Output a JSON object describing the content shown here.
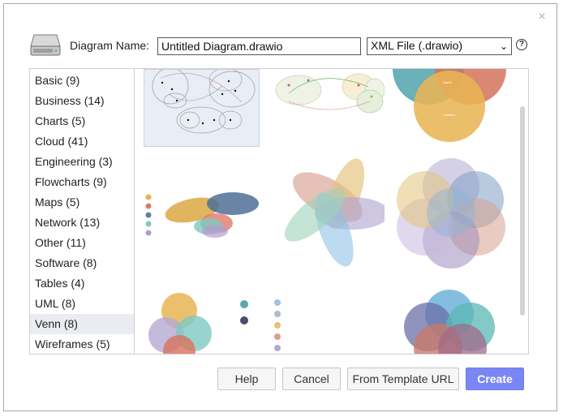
{
  "dialog": {
    "name_label": "Diagram Name:",
    "name_value": "Untitled Diagram.drawio",
    "format_selected": "XML File (.drawio)",
    "help_glyph": "?",
    "close_glyph": "×"
  },
  "categories": [
    {
      "label": "Basic (9)"
    },
    {
      "label": "Business (14)"
    },
    {
      "label": "Charts (5)"
    },
    {
      "label": "Cloud (41)"
    },
    {
      "label": "Engineering (3)"
    },
    {
      "label": "Flowcharts (9)"
    },
    {
      "label": "Maps (5)"
    },
    {
      "label": "Network (13)"
    },
    {
      "label": "Other (11)"
    },
    {
      "label": "Software (8)"
    },
    {
      "label": "Tables (4)"
    },
    {
      "label": "UML (8)"
    },
    {
      "label": "Venn (8)"
    },
    {
      "label": "Wireframes (5)"
    }
  ],
  "selected_category": "Venn (8)",
  "buttons": {
    "help": "Help",
    "cancel": "Cancel",
    "template_url": "From Template URL",
    "create": "Create"
  },
  "colors": {
    "accent": "#7b86f5",
    "selected_row": "#e9edf2"
  }
}
